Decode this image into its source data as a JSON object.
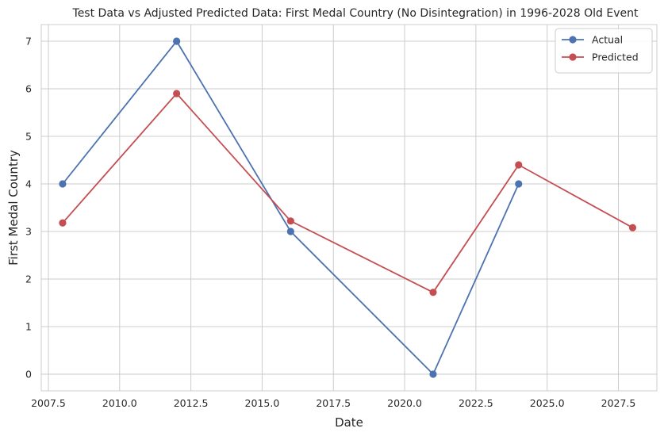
{
  "chart_data": {
    "type": "line",
    "title": "Test Data vs Adjusted Predicted Data: First Medal Country (No Disintegration) in 1996-2028 Old Event",
    "xlabel": "Date",
    "ylabel": "First Medal Country",
    "xlim": [
      2007.25,
      2028.85
    ],
    "ylim": [
      -0.35,
      7.35
    ],
    "xticks": [
      2007.5,
      2010.0,
      2012.5,
      2015.0,
      2017.5,
      2020.0,
      2022.5,
      2025.0,
      2027.5
    ],
    "xtick_labels": [
      "2007.5",
      "2010.0",
      "2012.5",
      "2015.0",
      "2017.5",
      "2020.0",
      "2022.5",
      "2025.0",
      "2027.5"
    ],
    "yticks": [
      0,
      1,
      2,
      3,
      4,
      5,
      6,
      7
    ],
    "ytick_labels": [
      "0",
      "1",
      "2",
      "3",
      "4",
      "5",
      "6",
      "7"
    ],
    "grid": true,
    "legend_position": "top-right",
    "series": [
      {
        "name": "Actual",
        "color": "#4c72b0",
        "marker": "circle",
        "x": [
          2008,
          2012,
          2016,
          2021,
          2024
        ],
        "y": [
          4,
          7,
          3,
          0,
          4
        ]
      },
      {
        "name": "Predicted",
        "color": "#c44e52",
        "marker": "circle",
        "x": [
          2008,
          2012,
          2016,
          2021,
          2024,
          2028
        ],
        "y": [
          3.18,
          5.9,
          3.22,
          1.72,
          4.4,
          3.08
        ]
      }
    ]
  }
}
